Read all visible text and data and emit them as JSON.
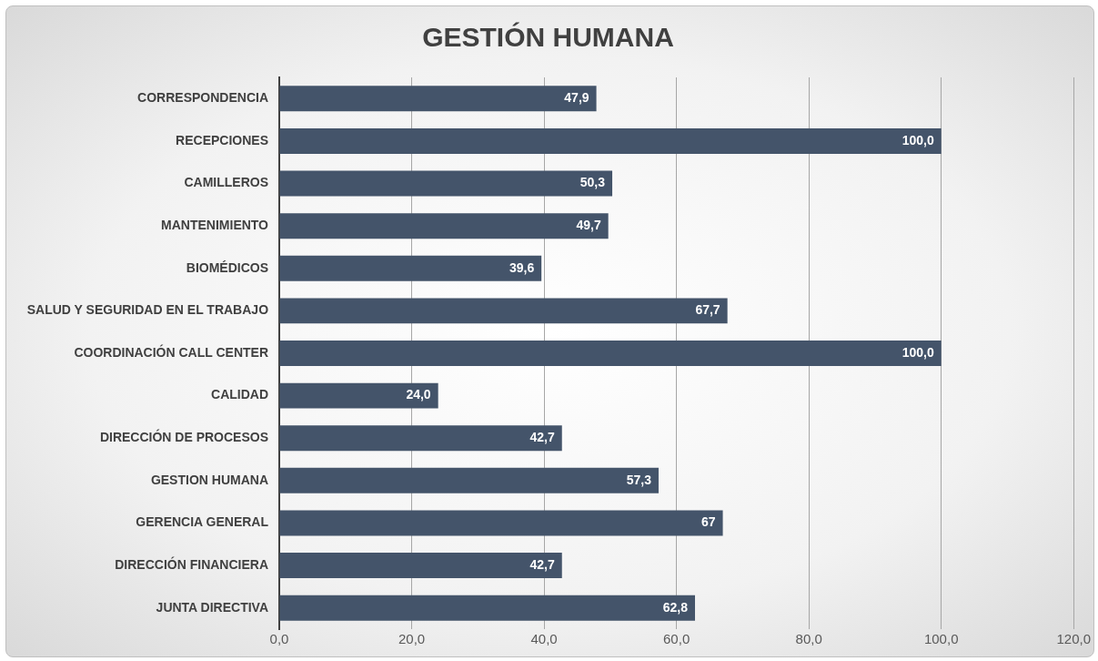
{
  "chart_data": {
    "type": "bar",
    "orientation": "horizontal",
    "title": "GESTIÓN HUMANA",
    "categories": [
      "CORRESPONDENCIA",
      "RECEPCIONES",
      "CAMILLEROS",
      "MANTENIMIENTO",
      "BIOMÉDICOS",
      "SALUD Y SEGURIDAD EN EL TRABAJO",
      "COORDINACIÓN CALL CENTER",
      "CALIDAD",
      "DIRECCIÓN DE PROCESOS",
      "GESTION HUMANA",
      "GERENCIA GENERAL",
      "DIRECCIÓN FINANCIERA",
      "JUNTA DIRECTIVA"
    ],
    "values": [
      47.9,
      100.0,
      50.3,
      49.7,
      39.6,
      67.7,
      100.0,
      24.0,
      42.7,
      57.3,
      67,
      42.7,
      62.8
    ],
    "value_labels": [
      "47,9",
      "100,0",
      "50,3",
      "49,7",
      "39,6",
      "67,7",
      "100,0",
      "24,0",
      "42,7",
      "57,3",
      "67",
      "42,7",
      "62,8"
    ],
    "color": "#44546a",
    "xlim": [
      0,
      120
    ],
    "xticks": [
      {
        "value": 0,
        "label": "0,0"
      },
      {
        "value": 20,
        "label": "20,0"
      },
      {
        "value": 40,
        "label": "40,0"
      },
      {
        "value": 60,
        "label": "60,0"
      },
      {
        "value": 80,
        "label": "80,0"
      },
      {
        "value": 100,
        "label": "100,0"
      },
      {
        "value": 120,
        "label": "120,0"
      }
    ],
    "grid": "x",
    "legend": false
  }
}
